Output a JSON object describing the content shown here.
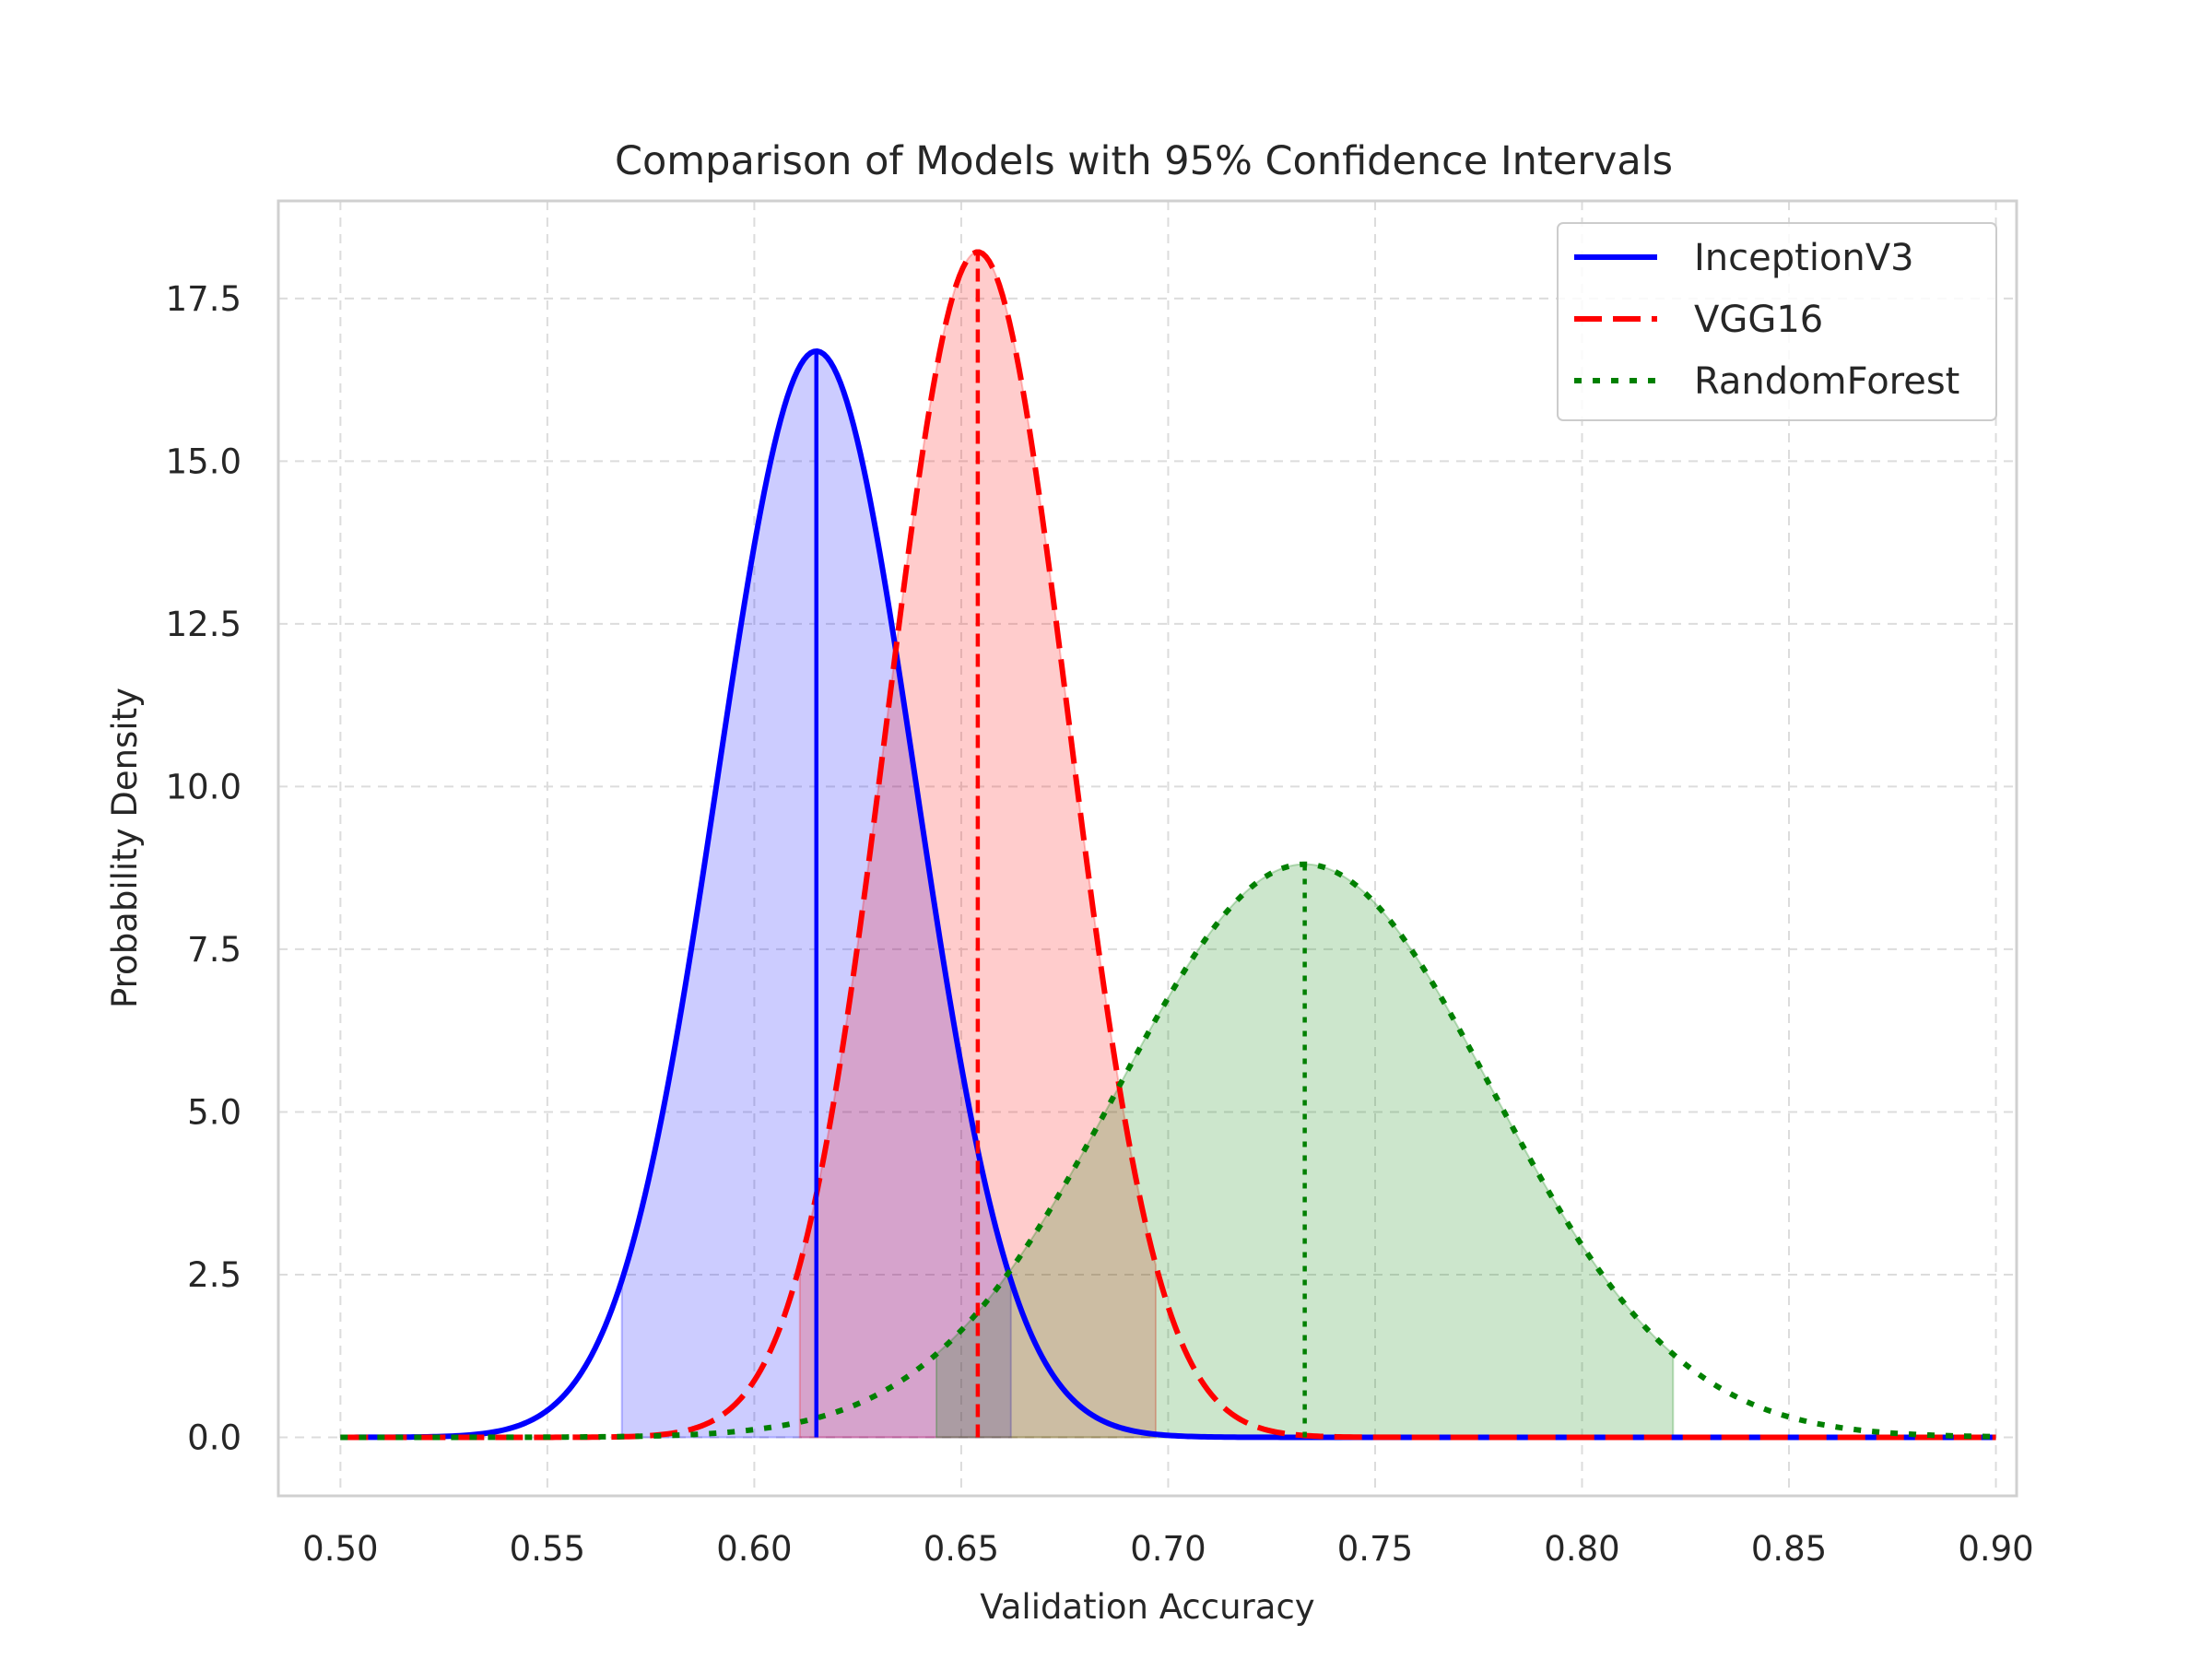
{
  "chart_data": {
    "type": "line",
    "title": "Comparison of Models with 95% Confidence Intervals",
    "xlabel": "Validation Accuracy",
    "ylabel": "Probability Density",
    "xlim": [
      0.485,
      0.905
    ],
    "ylim": [
      -0.9,
      19.0
    ],
    "x_range": [
      0.5,
      0.9
    ],
    "xticks": [
      "0.50",
      "0.55",
      "0.60",
      "0.65",
      "0.70",
      "0.75",
      "0.80",
      "0.85",
      "0.90"
    ],
    "yticks": [
      "0.0",
      "2.5",
      "5.0",
      "7.5",
      "10.0",
      "12.5",
      "15.0",
      "17.5"
    ],
    "grid": true,
    "legend_position": "top-right",
    "series": [
      {
        "name": "InceptionV3",
        "distribution": "normal",
        "mean": 0.615,
        "std": 0.0239,
        "ci95": [
          0.568,
          0.662
        ],
        "color": "#0000ff",
        "fill": "#0000ff",
        "style": "solid"
      },
      {
        "name": "VGG16",
        "distribution": "normal",
        "mean": 0.654,
        "std": 0.0219,
        "ci95": [
          0.611,
          0.697
        ],
        "color": "#ff0000",
        "fill": "#ff0000",
        "style": "dashed"
      },
      {
        "name": "RandomForest",
        "distribution": "normal",
        "mean": 0.733,
        "std": 0.0453,
        "ci95": [
          0.644,
          0.822
        ],
        "color": "#008000",
        "fill": "#008000",
        "style": "dotted"
      }
    ]
  }
}
